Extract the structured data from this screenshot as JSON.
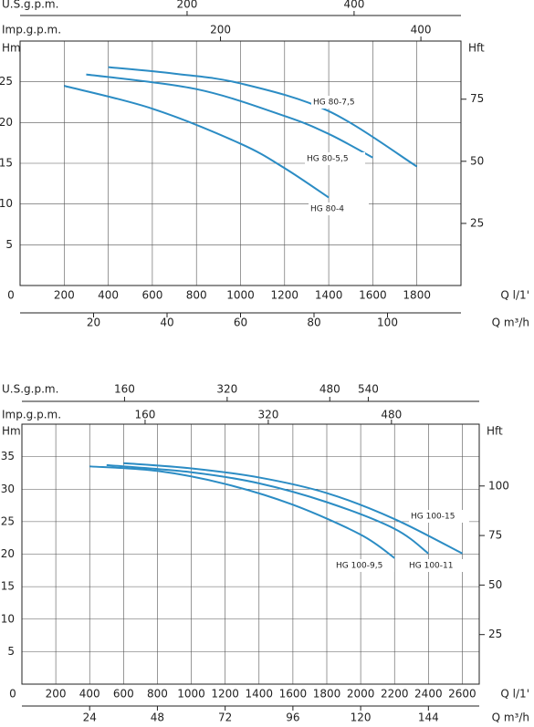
{
  "chart_data": [
    {
      "type": "line",
      "x_label": "Q  l/1'",
      "y_label": "Hm",
      "y2_label": "Hft",
      "xlim": [
        0,
        2000
      ],
      "xticks": [
        0,
        200,
        400,
        600,
        800,
        1000,
        1200,
        1400,
        1600,
        1800
      ],
      "ylim": [
        0,
        30
      ],
      "yticks": [
        5,
        10,
        15,
        20,
        25
      ],
      "y2lim": [
        0,
        98.4
      ],
      "y2ticks": [
        25,
        50,
        75
      ],
      "grid": true,
      "top_axes": [
        {
          "label": "U.S.g.p.m.",
          "xlim": [
            0,
            528
          ],
          "xticks": [
            200,
            400
          ]
        },
        {
          "label": "Imp.g.p.m.",
          "xlim": [
            0,
            440
          ],
          "xticks": [
            200,
            400
          ]
        }
      ],
      "bottom_axes": [
        {
          "label": "Q  m³/h",
          "xlim": [
            0,
            120
          ],
          "xticks": [
            20,
            40,
            60,
            80,
            100
          ]
        }
      ],
      "series": [
        {
          "name": "HG  80-7,5",
          "color": "#2b8cc4",
          "x": [
            400,
            700,
            1000,
            1400,
            1800
          ],
          "values": [
            26.8,
            26.0,
            24.8,
            21.4,
            14.6
          ]
        },
        {
          "name": "HG 80-5,5",
          "color": "#2b8cc4",
          "x": [
            300,
            800,
            1200,
            1400,
            1600
          ],
          "values": [
            25.9,
            24.1,
            20.8,
            18.6,
            15.7
          ]
        },
        {
          "name": "HG 80-4",
          "color": "#2b8cc4",
          "x": [
            200,
            600,
            1000,
            1200,
            1400
          ],
          "values": [
            24.5,
            21.7,
            17.4,
            14.4,
            10.8
          ]
        }
      ]
    },
    {
      "type": "line",
      "x_label": "Q  l/1'",
      "y_label": "Hm",
      "y2_label": "Hft",
      "xlim": [
        0,
        2700
      ],
      "xticks": [
        0,
        200,
        400,
        600,
        800,
        1000,
        1200,
        1400,
        1600,
        1800,
        2000,
        2200,
        2400,
        2600
      ],
      "ylim": [
        0,
        40
      ],
      "yticks": [
        5,
        10,
        15,
        20,
        25,
        30,
        35
      ],
      "y2lim": [
        0,
        131.2
      ],
      "y2ticks": [
        25,
        50,
        75,
        100
      ],
      "grid": true,
      "top_axes": [
        {
          "label": "U.S.g.p.m.",
          "xlim": [
            0,
            713
          ],
          "xticks": [
            160,
            320,
            480,
            540
          ]
        },
        {
          "label": "Imp.g.p.m.",
          "xlim": [
            0,
            594
          ],
          "xticks": [
            160,
            320,
            480
          ]
        }
      ],
      "bottom_axes": [
        {
          "label": "Q  m³/h",
          "xlim": [
            0,
            162
          ],
          "xticks": [
            24,
            48,
            72,
            96,
            120,
            144
          ]
        }
      ],
      "series": [
        {
          "name": "HG 100-15",
          "color": "#2b8cc4",
          "x": [
            600,
            1000,
            1400,
            1800,
            2200,
            2600
          ],
          "values": [
            34.0,
            33.2,
            31.8,
            29.4,
            25.4,
            20.1
          ]
        },
        {
          "name": "HG 100-9,5",
          "color": "#2b8cc4",
          "x": [
            400,
            800,
            1200,
            1600,
            2000,
            2200
          ],
          "values": [
            33.5,
            32.8,
            30.8,
            27.6,
            23.0,
            19.4
          ]
        },
        {
          "name": "HG 100-11",
          "color": "#2b8cc4",
          "x": [
            500,
            1000,
            1400,
            1800,
            2200,
            2400
          ],
          "values": [
            33.7,
            32.6,
            30.9,
            28.0,
            23.9,
            20.1
          ]
        }
      ]
    }
  ]
}
